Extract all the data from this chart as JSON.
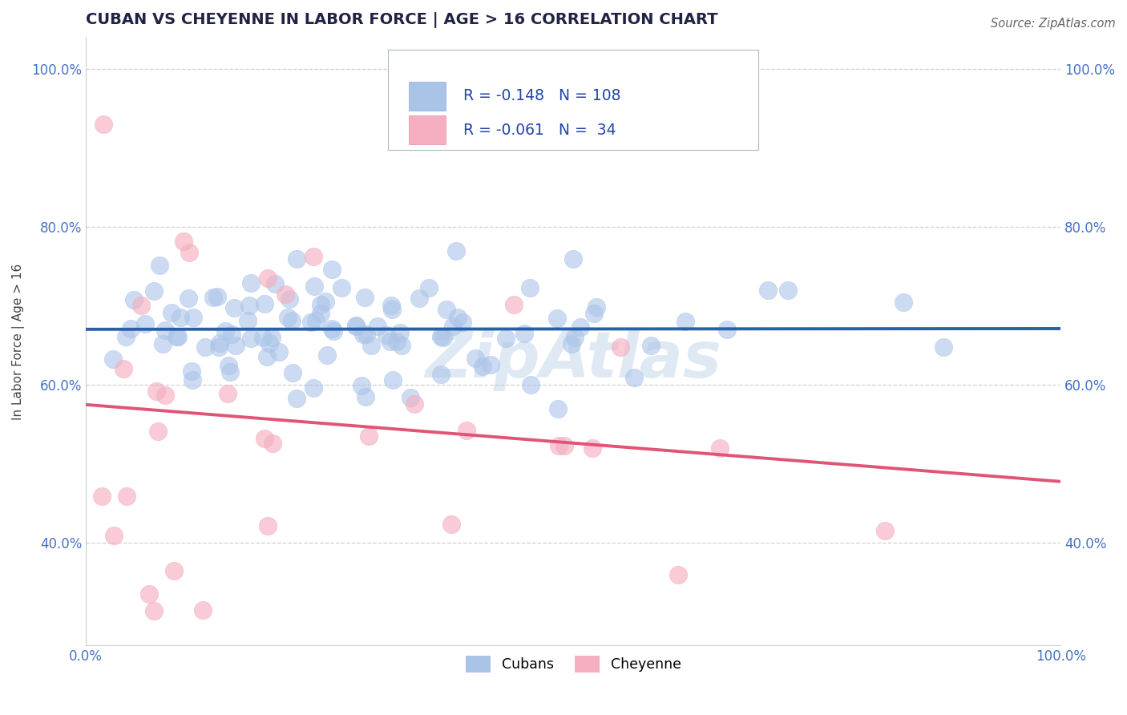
{
  "title": "CUBAN VS CHEYENNE IN LABOR FORCE | AGE > 16 CORRELATION CHART",
  "source_text": "Source: ZipAtlas.com",
  "ylabel": "In Labor Force | Age > 16",
  "xlim": [
    0.0,
    1.0
  ],
  "ylim": [
    0.27,
    1.04
  ],
  "y_ticks": [
    0.4,
    0.6,
    0.8,
    1.0
  ],
  "y_tick_labels": [
    "40.0%",
    "60.0%",
    "80.0%",
    "100.0%"
  ],
  "cubans_R": -0.148,
  "cubans_N": 108,
  "cheyenne_R": -0.061,
  "cheyenne_N": 34,
  "cubans_color": "#aac4e8",
  "cheyenne_color": "#f5afc0",
  "cubans_line_color": "#2960a8",
  "cheyenne_line_color": "#e05575",
  "tick_color": "#4472c4",
  "legend_label_cubans": "Cubans",
  "legend_label_cheyenne": "Cheyenne",
  "watermark": "ZipAtlas",
  "watermark_color": "#b8d0e8",
  "grid_color": "#d0d0d0",
  "title_color": "#222244"
}
